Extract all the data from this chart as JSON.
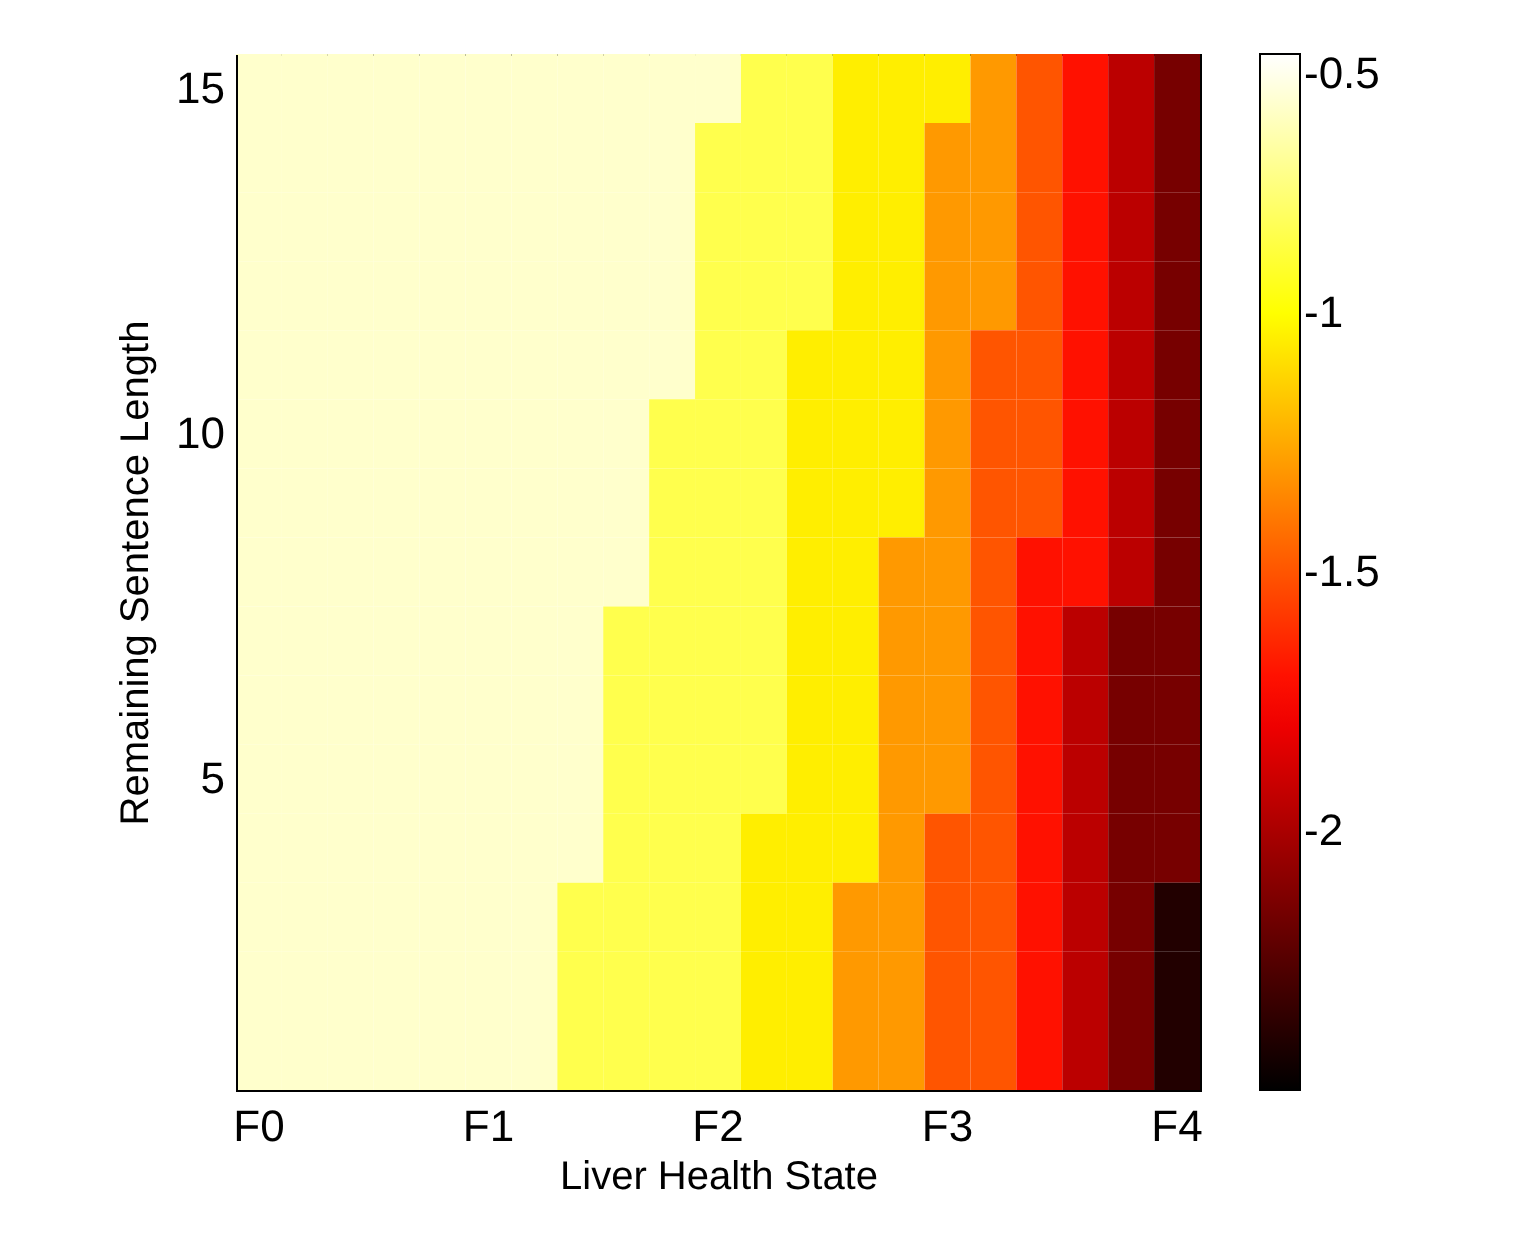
{
  "chart_data": {
    "type": "heatmap",
    "xlabel": "Liver Health State",
    "ylabel": "Remaining Sentence Length",
    "categories": [
      "F0",
      null,
      null,
      null,
      null,
      "F1",
      null,
      null,
      null,
      null,
      "F2",
      null,
      null,
      null,
      null,
      "F3",
      null,
      null,
      null,
      null,
      "F4"
    ],
    "y_categories": [
      "15",
      null,
      null,
      null,
      null,
      "10",
      null,
      null,
      null,
      null,
      "5",
      null,
      null,
      null,
      null
    ],
    "clim": [
      -2.5,
      -0.5
    ],
    "cticks": [
      -0.5,
      -1,
      -1.5,
      -2
    ],
    "cells": [
      [
        -0.6,
        -0.6,
        -0.6,
        -0.6,
        -0.6,
        -0.6,
        -0.6,
        -0.6,
        -0.6,
        -0.6,
        -0.6,
        -0.85,
        -0.85,
        -1.05,
        -1.05,
        -1.05,
        -1.3,
        -1.5,
        -1.7,
        -1.95,
        -2.15
      ],
      [
        -0.6,
        -0.6,
        -0.6,
        -0.6,
        -0.6,
        -0.6,
        -0.6,
        -0.6,
        -0.6,
        -0.6,
        -0.85,
        -0.85,
        -0.85,
        -1.05,
        -1.05,
        -1.3,
        -1.3,
        -1.5,
        -1.7,
        -1.95,
        -2.15
      ],
      [
        -0.6,
        -0.6,
        -0.6,
        -0.6,
        -0.6,
        -0.6,
        -0.6,
        -0.6,
        -0.6,
        -0.6,
        -0.85,
        -0.85,
        -0.85,
        -1.05,
        -1.05,
        -1.3,
        -1.3,
        -1.5,
        -1.7,
        -1.95,
        -2.15
      ],
      [
        -0.6,
        -0.6,
        -0.6,
        -0.6,
        -0.6,
        -0.6,
        -0.6,
        -0.6,
        -0.6,
        -0.6,
        -0.85,
        -0.85,
        -0.85,
        -1.05,
        -1.05,
        -1.3,
        -1.3,
        -1.5,
        -1.7,
        -1.95,
        -2.15
      ],
      [
        -0.6,
        -0.6,
        -0.6,
        -0.6,
        -0.6,
        -0.6,
        -0.6,
        -0.6,
        -0.6,
        -0.6,
        -0.85,
        -0.85,
        -1.05,
        -1.05,
        -1.05,
        -1.3,
        -1.5,
        -1.5,
        -1.7,
        -1.95,
        -2.15
      ],
      [
        -0.6,
        -0.6,
        -0.6,
        -0.6,
        -0.6,
        -0.6,
        -0.6,
        -0.6,
        -0.6,
        -0.85,
        -0.85,
        -0.85,
        -1.05,
        -1.05,
        -1.05,
        -1.3,
        -1.5,
        -1.5,
        -1.7,
        -1.95,
        -2.15
      ],
      [
        -0.6,
        -0.6,
        -0.6,
        -0.6,
        -0.6,
        -0.6,
        -0.6,
        -0.6,
        -0.6,
        -0.85,
        -0.85,
        -0.85,
        -1.05,
        -1.05,
        -1.05,
        -1.3,
        -1.5,
        -1.5,
        -1.7,
        -1.95,
        -2.15
      ],
      [
        -0.6,
        -0.6,
        -0.6,
        -0.6,
        -0.6,
        -0.6,
        -0.6,
        -0.6,
        -0.6,
        -0.85,
        -0.85,
        -0.85,
        -1.05,
        -1.05,
        -1.3,
        -1.3,
        -1.5,
        -1.7,
        -1.7,
        -1.95,
        -2.15
      ],
      [
        -0.6,
        -0.6,
        -0.6,
        -0.6,
        -0.6,
        -0.6,
        -0.6,
        -0.6,
        -0.85,
        -0.85,
        -0.85,
        -0.85,
        -1.05,
        -1.05,
        -1.3,
        -1.3,
        -1.5,
        -1.7,
        -1.95,
        -2.15,
        -2.15
      ],
      [
        -0.6,
        -0.6,
        -0.6,
        -0.6,
        -0.6,
        -0.6,
        -0.6,
        -0.6,
        -0.85,
        -0.85,
        -0.85,
        -0.85,
        -1.05,
        -1.05,
        -1.3,
        -1.3,
        -1.5,
        -1.7,
        -1.95,
        -2.15,
        -2.15
      ],
      [
        -0.6,
        -0.6,
        -0.6,
        -0.6,
        -0.6,
        -0.6,
        -0.6,
        -0.6,
        -0.85,
        -0.85,
        -0.85,
        -0.85,
        -1.05,
        -1.05,
        -1.3,
        -1.3,
        -1.5,
        -1.7,
        -1.95,
        -2.15,
        -2.15
      ],
      [
        -0.6,
        -0.6,
        -0.6,
        -0.6,
        -0.6,
        -0.6,
        -0.6,
        -0.6,
        -0.85,
        -0.85,
        -0.85,
        -1.05,
        -1.05,
        -1.05,
        -1.3,
        -1.5,
        -1.5,
        -1.7,
        -1.95,
        -2.15,
        -2.15
      ],
      [
        -0.6,
        -0.6,
        -0.6,
        -0.6,
        -0.6,
        -0.6,
        -0.6,
        -0.85,
        -0.85,
        -0.85,
        -0.85,
        -1.05,
        -1.05,
        -1.3,
        -1.3,
        -1.5,
        -1.5,
        -1.7,
        -1.95,
        -2.15,
        -2.4
      ],
      [
        -0.6,
        -0.6,
        -0.6,
        -0.6,
        -0.6,
        -0.6,
        -0.6,
        -0.85,
        -0.85,
        -0.85,
        -0.85,
        -1.05,
        -1.05,
        -1.3,
        -1.3,
        -1.5,
        -1.5,
        -1.7,
        -1.95,
        -2.15,
        -2.4
      ],
      [
        -0.6,
        -0.6,
        -0.6,
        -0.6,
        -0.6,
        -0.6,
        -0.6,
        -0.85,
        -0.85,
        -0.85,
        -0.85,
        -1.05,
        -1.05,
        -1.3,
        -1.3,
        -1.5,
        -1.5,
        -1.7,
        -1.95,
        -2.15,
        -2.4
      ]
    ]
  }
}
